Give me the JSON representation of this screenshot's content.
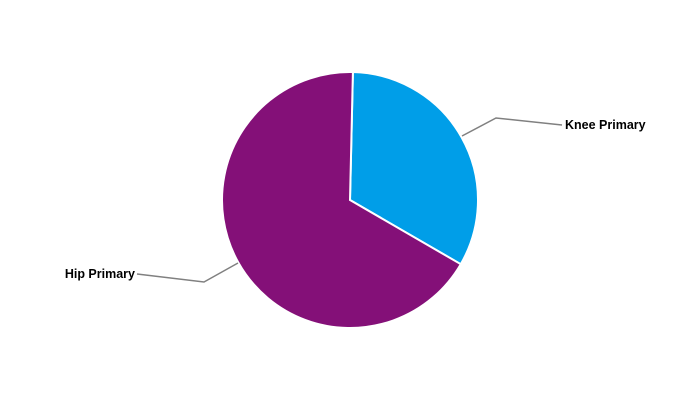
{
  "chart_data": {
    "type": "pie",
    "title": "",
    "slices": [
      {
        "label": "Knee Primary",
        "value": 33,
        "color": "#009EE8"
      },
      {
        "label": "Hip Primary",
        "value": 67,
        "color": "#841078"
      }
    ],
    "legend": "none",
    "label_style": "outside with leader lines"
  }
}
